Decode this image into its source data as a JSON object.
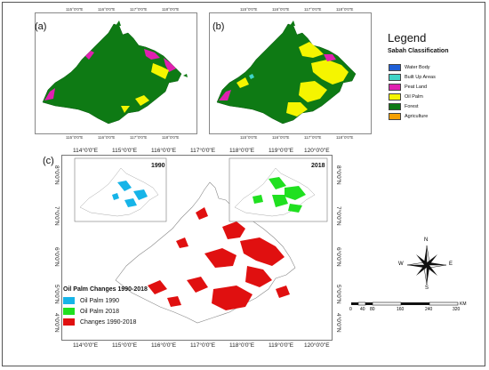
{
  "panels": {
    "a_label": "(a)",
    "b_label": "(b)",
    "c_label": "(c)"
  },
  "small_ticks": {
    "top": [
      "115°0'0\"E",
      "116°0'0\"E",
      "117°0'0\"E",
      "118°0'0\"E",
      "119°0'0\"E"
    ],
    "side": [
      "8°0'0\"N",
      "7°0'0\"N",
      "6°0'0\"N",
      "5°0'0\"N",
      "4°0'0\"N"
    ]
  },
  "big_ticks": {
    "x": [
      "114°0'0\"E",
      "115°0'0\"E",
      "116°0'0\"E",
      "117°0'0\"E",
      "118°0'0\"E",
      "119°0'0\"E",
      "120°0'0\"E"
    ],
    "y": [
      "8°0'0\"N",
      "7°0'0\"N",
      "6°0'0\"N",
      "5°0'0\"N",
      "4°0'0\"N"
    ]
  },
  "legend": {
    "title": "Legend",
    "subtitle": "Sabah Classification",
    "items": [
      {
        "label": "Water Body",
        "color": "#1f5fd6"
      },
      {
        "label": "Built Up Areas",
        "color": "#3fd4c8"
      },
      {
        "label": "Peat Land",
        "color": "#e020b0"
      },
      {
        "label": "Oil Palm",
        "color": "#f5f500"
      },
      {
        "label": "Forest",
        "color": "#0e7a14"
      },
      {
        "label": "Agriculture",
        "color": "#f5a000"
      }
    ]
  },
  "insets": {
    "left_year": "1990",
    "right_year": "2018"
  },
  "changes": {
    "title": "Oil Palm Changes 1990-2018",
    "items": [
      {
        "label": "Oil Palm 1990",
        "color": "#16b4e8"
      },
      {
        "label": "Oil Palm 2018",
        "color": "#20e020"
      },
      {
        "label": "Changes 1990-2018",
        "color": "#e01010"
      }
    ]
  },
  "compass": {
    "n": "N",
    "s": "S",
    "e": "E",
    "w": "W"
  },
  "scale": {
    "labels": [
      "0",
      "40",
      "80",
      "160",
      "240",
      "320"
    ],
    "unit": "KM"
  }
}
